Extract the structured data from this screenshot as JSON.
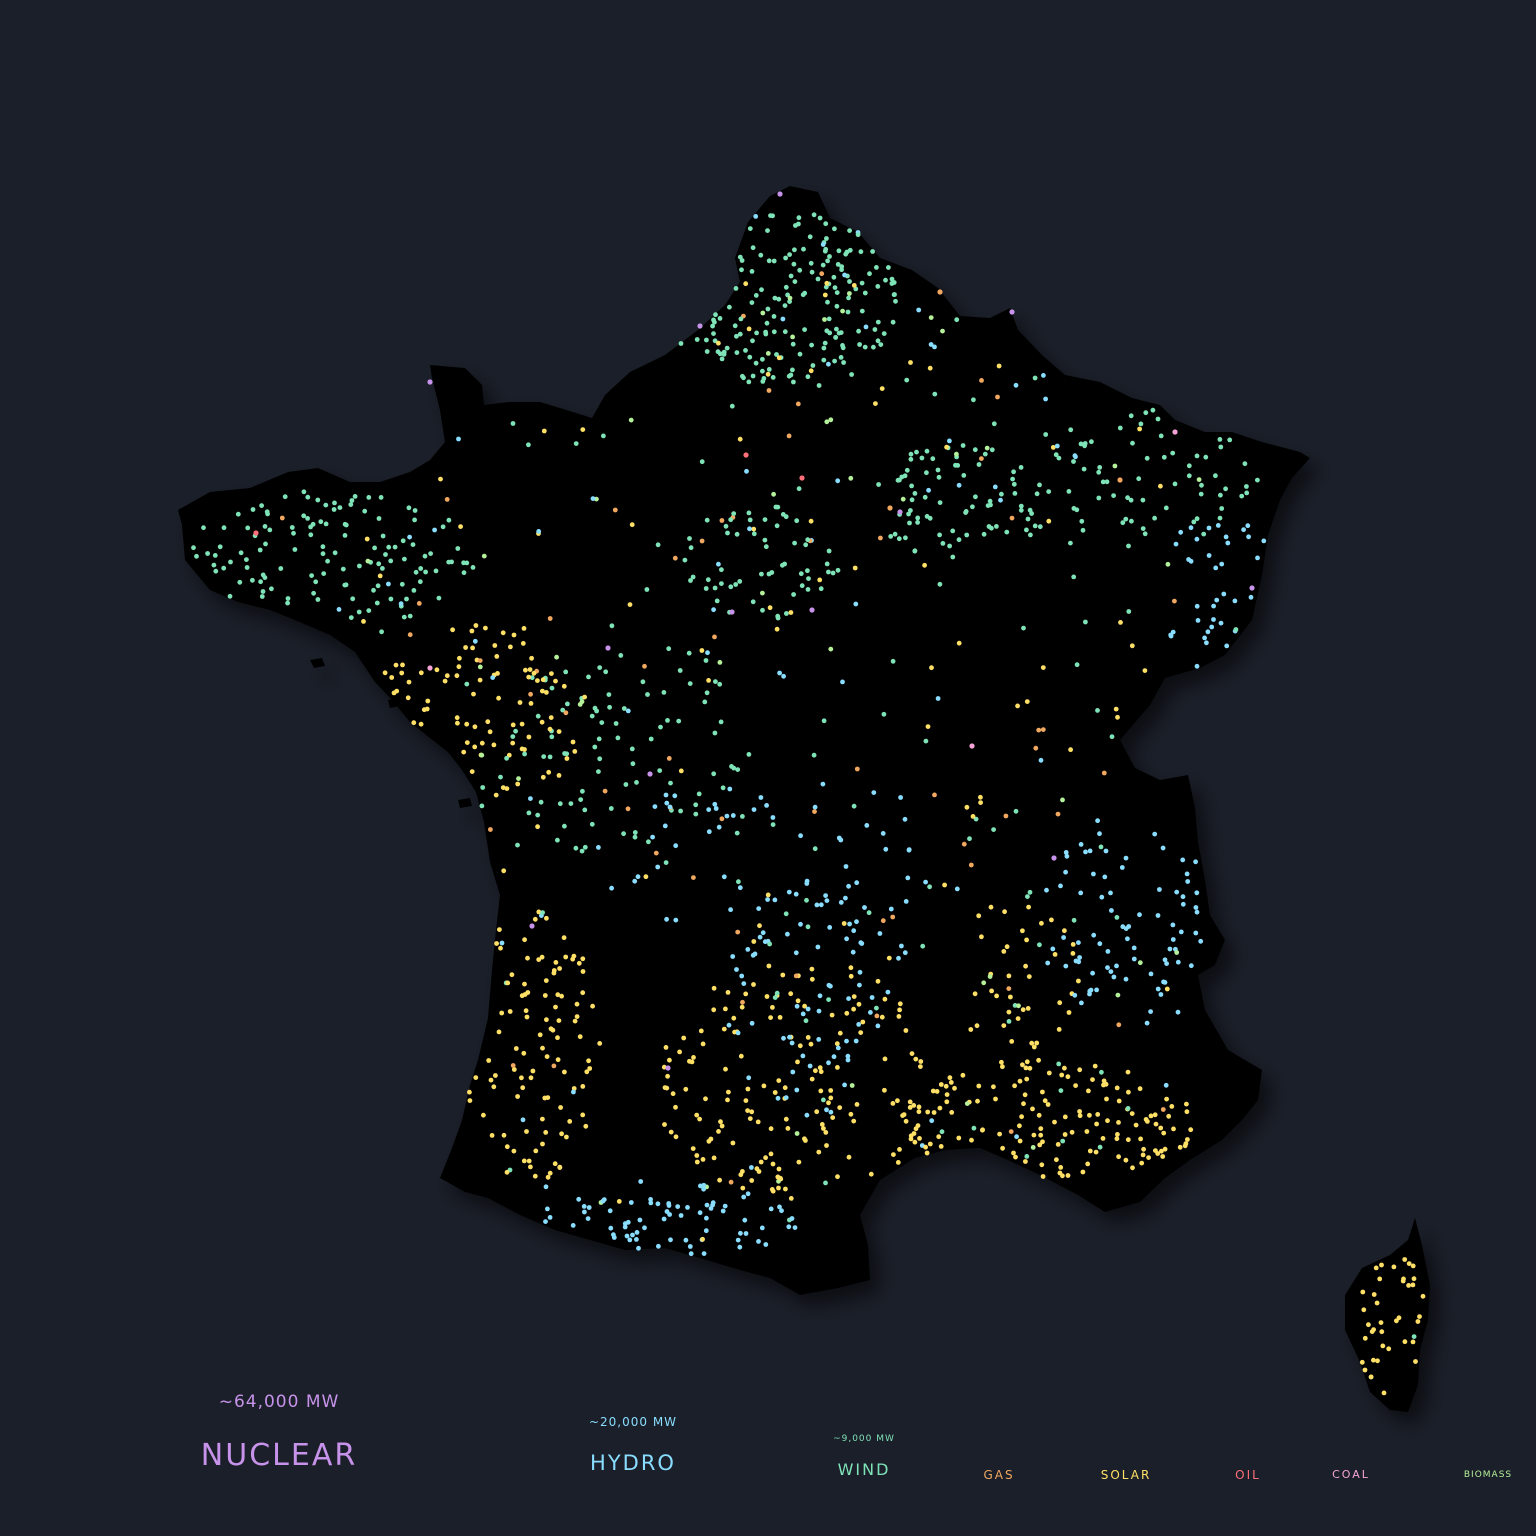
{
  "colors": {
    "background": "#1b1f29",
    "land": "#000000",
    "nuclear": "#c792ea",
    "hydro": "#89ddff",
    "wind": "#7fe3b8",
    "gas": "#f0a860",
    "solar": "#ffe066",
    "oil": "#ff6f7a",
    "coal": "#f5a3d6",
    "biomass": "#b5f09a"
  },
  "legend": [
    {
      "key": "nuclear",
      "label": "NUCLEAR",
      "capacity": "~64,000 MW"
    },
    {
      "key": "hydro",
      "label": "HYDRO",
      "capacity": "~20,000 MW"
    },
    {
      "key": "wind",
      "label": "WIND",
      "capacity": "~9,000 MW"
    },
    {
      "key": "gas",
      "label": "GAS"
    },
    {
      "key": "solar",
      "label": "SOLAR"
    },
    {
      "key": "oil",
      "label": "OIL"
    },
    {
      "key": "coal",
      "label": "COAL"
    },
    {
      "key": "biomass",
      "label": "BIOMASS"
    }
  ]
}
